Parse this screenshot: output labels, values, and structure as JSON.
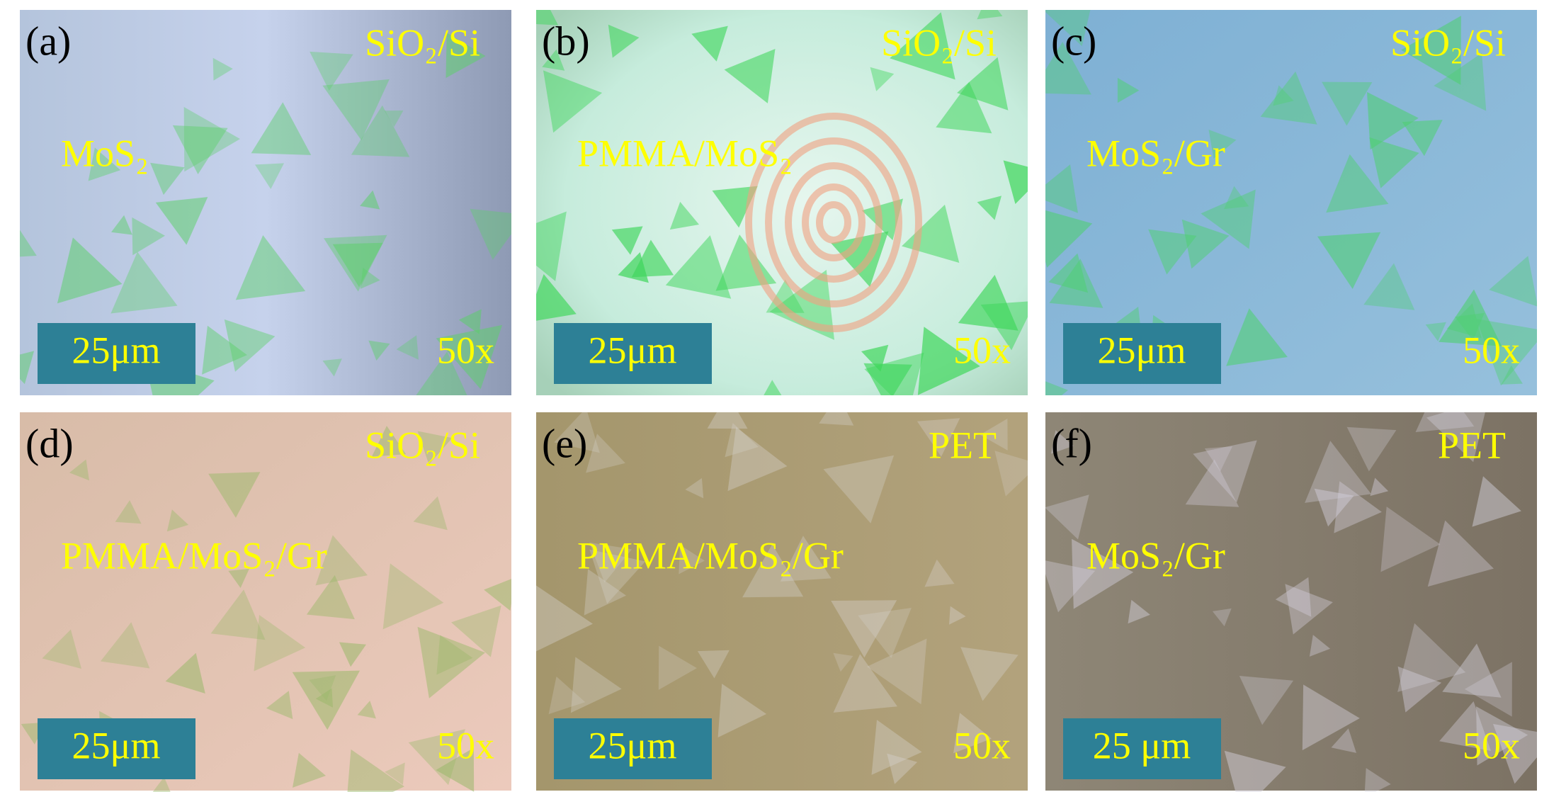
{
  "panels": [
    {
      "label": "(a)",
      "substrate": "SiO₂/Si",
      "sample": "MoS₂",
      "scale_bar": "25μm",
      "magnification": "50x"
    },
    {
      "label": "(b)",
      "substrate": "SiO₂/Si",
      "sample": "PMMA/MoS₂",
      "scale_bar": "25μm",
      "magnification": "50x"
    },
    {
      "label": "(c)",
      "substrate": "SiO₂/Si",
      "sample": "MoS₂/Gr",
      "scale_bar": "25μm",
      "magnification": "50x"
    },
    {
      "label": "(d)",
      "substrate": "SiO₂/Si",
      "sample": "PMMA/MoS₂/Gr",
      "scale_bar": "25μm",
      "magnification": "50x"
    },
    {
      "label": "(e)",
      "substrate": "PET",
      "sample": "PMMA/MoS₂/Gr",
      "scale_bar": "25μm",
      "magnification": "50x"
    },
    {
      "label": "(f)",
      "substrate": "PET",
      "sample": "MoS₂/Gr",
      "scale_bar": "25 μm",
      "magnification": "50x"
    }
  ]
}
